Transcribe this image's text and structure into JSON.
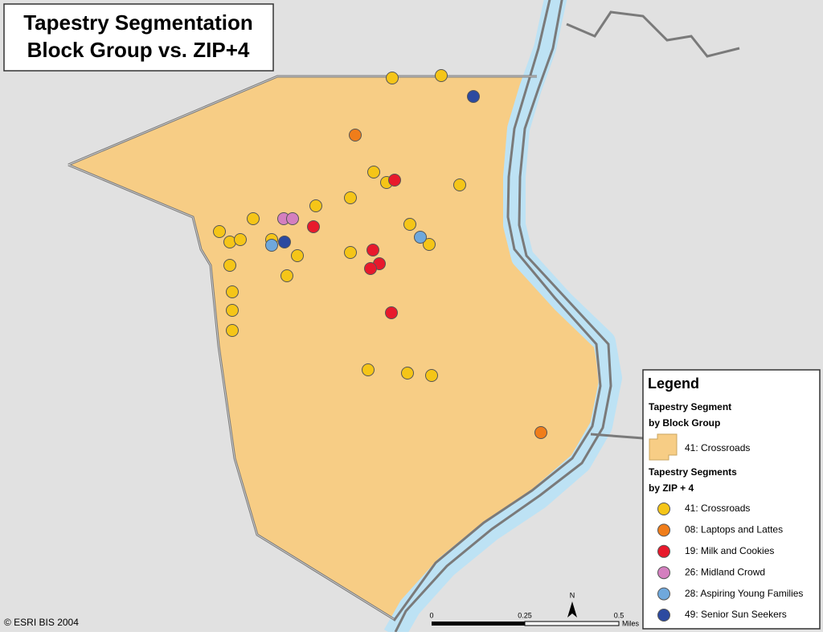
{
  "title": {
    "line1": "Tapestry Segmentation",
    "line2": "Block Group vs. ZIP+4"
  },
  "legend": {
    "title": "Legend",
    "block_group": {
      "heading1": "Tapestry Segment",
      "heading2": "by Block Group",
      "item": "41: Crossroads",
      "color": "#f7cd85"
    },
    "zip4": {
      "heading1": "Tapestry Segments",
      "heading2": "by ZIP + 4",
      "items": [
        {
          "label": "41: Crossroads",
          "color": "#f5c518"
        },
        {
          "label": "08: Laptops and Lattes",
          "color": "#f07d1a"
        },
        {
          "label": "19: Milk and Cookies",
          "color": "#e8192c"
        },
        {
          "label": "26: Midland Crowd",
          "color": "#d47fbf"
        },
        {
          "label": "28: Aspiring Young Families",
          "color": "#6fa8dc"
        },
        {
          "label": "49: Senior Sun Seekers",
          "color": "#2c4aa0"
        }
      ]
    }
  },
  "scale_bar": {
    "labels": [
      "0",
      "0.25",
      "0.5"
    ],
    "unit": "Miles"
  },
  "north": "N",
  "copyright": "© ESRI BIS 2004"
}
